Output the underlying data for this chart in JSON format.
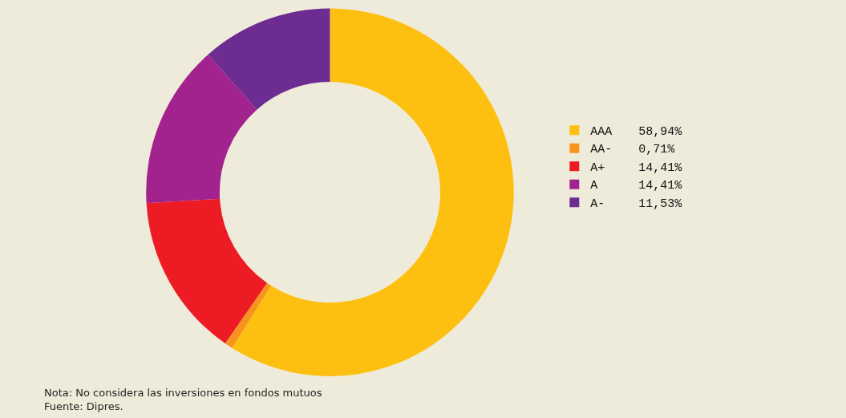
{
  "chart_data": {
    "type": "donut",
    "categories": [
      "AAA",
      "AA-",
      "A+",
      "A",
      "A-"
    ],
    "values": [
      58.94,
      0.71,
      14.41,
      14.41,
      11.53
    ],
    "value_labels": [
      "58,94%",
      "0,71%",
      "14,41%",
      "14,41%",
      "11,53%"
    ],
    "colors": [
      "#fdc010",
      "#f7941d",
      "#ed1c24",
      "#a3238e",
      "#6d2c91"
    ],
    "legend": "right",
    "annotations": [
      "Nota: No considera las inversiones en fondos mutuos",
      "Fuente: Dipres."
    ]
  }
}
